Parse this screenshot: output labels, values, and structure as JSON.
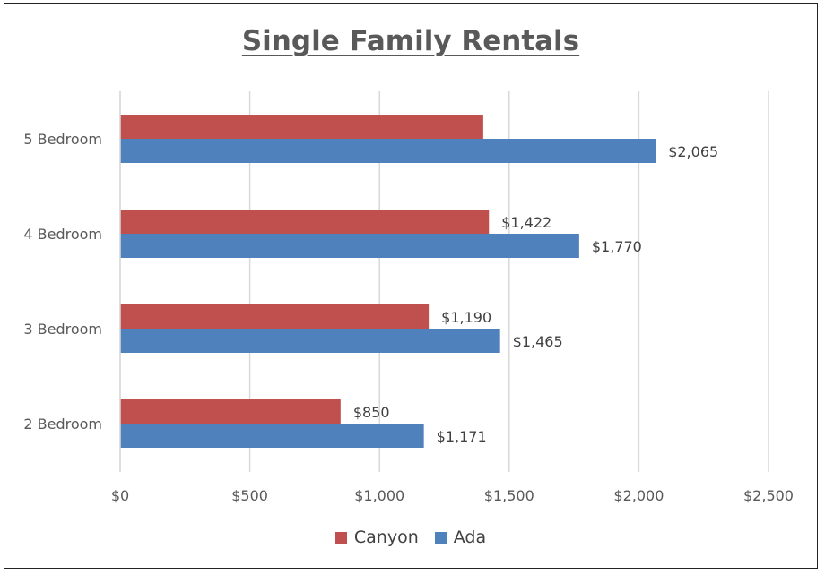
{
  "chart_data": {
    "type": "bar",
    "orientation": "horizontal",
    "title": "Single Family Rentals",
    "categories": [
      "5 Bedroom",
      "4 Bedroom",
      "3 Bedroom",
      "2 Bedroom"
    ],
    "series": [
      {
        "name": "Canyon",
        "color": "#C0504D",
        "values": [
          1400,
          1422,
          1190,
          850
        ],
        "labels": [
          "",
          "$1,422",
          "$1,190",
          "$850"
        ]
      },
      {
        "name": "Ada",
        "color": "#4F81BD",
        "values": [
          2065,
          1770,
          1465,
          1171
        ],
        "labels": [
          "$2,065",
          "$1,770",
          "$1,465",
          "$1,171"
        ]
      }
    ],
    "xlim": [
      0,
      2500
    ],
    "x_ticks": [
      0,
      500,
      1000,
      1500,
      2000,
      2500
    ],
    "x_tick_labels": [
      "$0",
      "$500",
      "$1,000",
      "$1,500",
      "$2,000",
      "$2,500"
    ],
    "grid": true,
    "legend_position": "bottom"
  }
}
